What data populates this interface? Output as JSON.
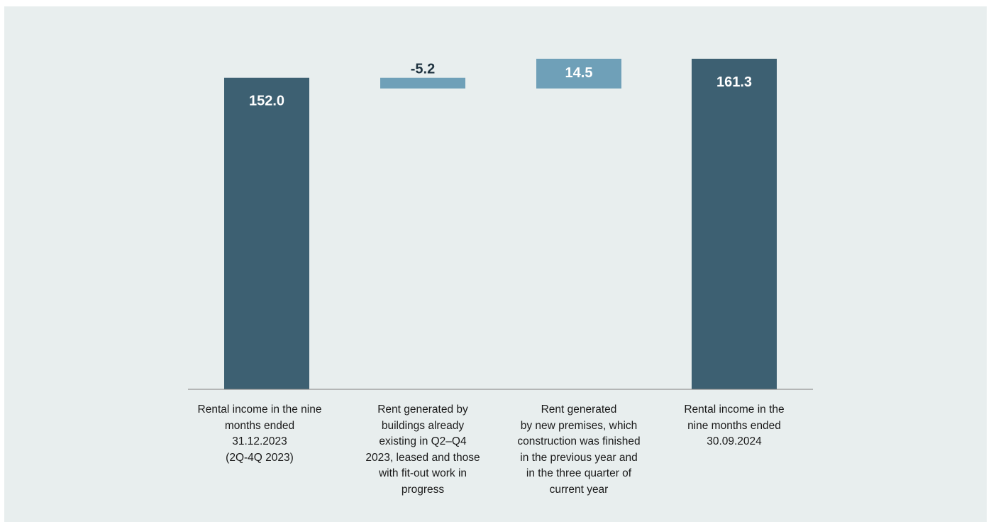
{
  "chart_data": {
    "type": "bar",
    "subtype": "waterfall",
    "title": "",
    "xlabel": "",
    "ylabel": "",
    "ylim": [
      0,
      170
    ],
    "grid": false,
    "legend": "none",
    "categories": [
      "Rental income in the nine\nmonths ended\n31.12.2023\n(2Q-4Q 2023)",
      "Rent generated by\nbuildings already\nexisting in Q2–Q4\n2023, leased and those\nwith fit-out work in\nprogress",
      "Rent generated\nby new premises, which\nconstruction was finished\nin the previous year and\nin the three quarter of\ncurrent year",
      "Rental income  in the\nnine months ended\n30.09.2024"
    ],
    "values": [
      152.0,
      -5.2,
      14.5,
      161.3
    ],
    "kinds": [
      "total",
      "delta",
      "delta",
      "total"
    ],
    "value_labels": [
      "152.0",
      "-5.2",
      "14.5",
      "161.3"
    ],
    "colors": {
      "total": "#3d6072",
      "delta": "#6fa0b8",
      "total_label": "#ffffff",
      "delta_neg_label": "#1f3340",
      "delta_pos_label": "#ffffff",
      "axis": "#7f7f7f",
      "background": "#e8eeee"
    }
  }
}
